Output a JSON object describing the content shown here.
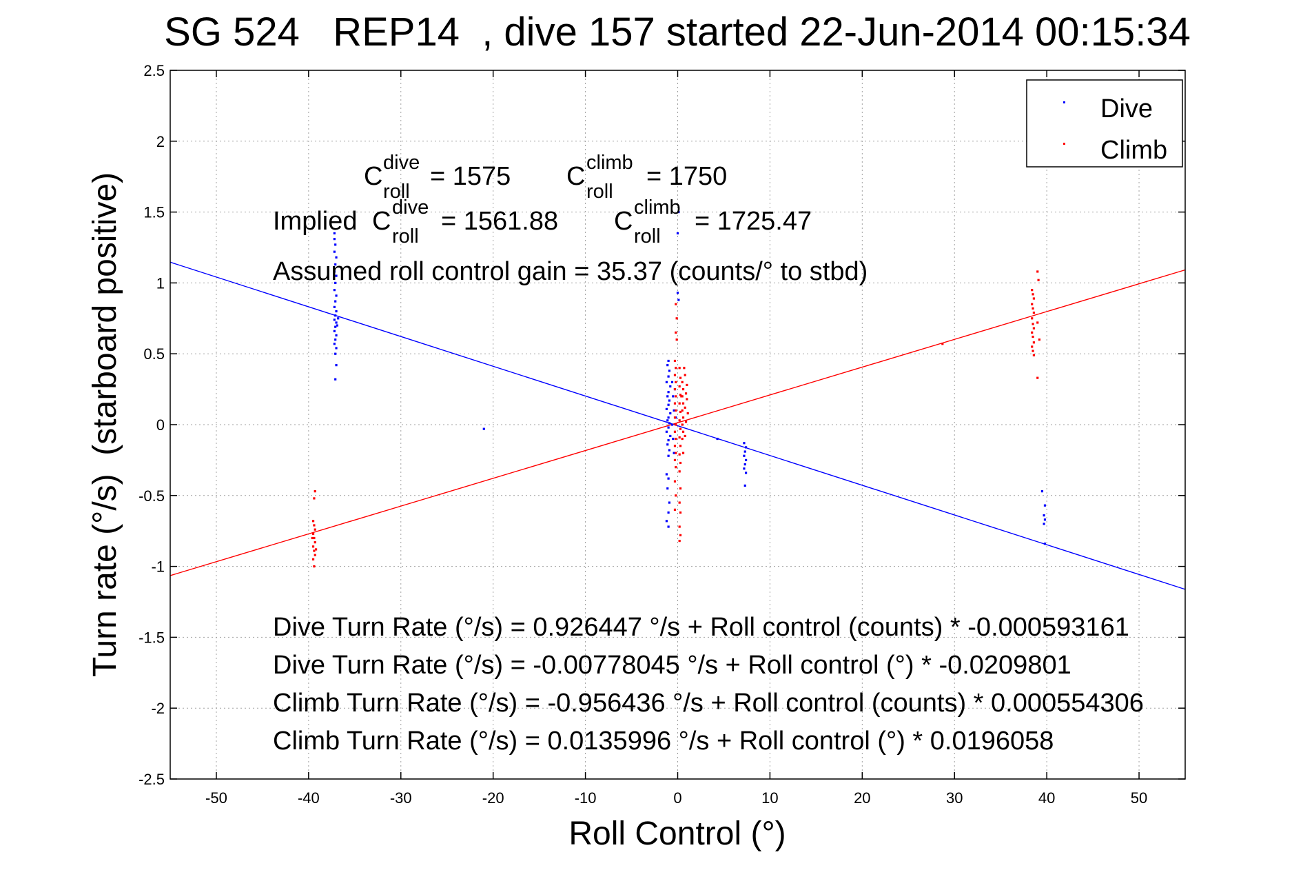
{
  "chart_data": {
    "type": "scatter",
    "title": "SG 524   REP14  , dive 157 started 22-Jun-2014 00:15:34",
    "xlabel": "Roll Control (°)",
    "ylabel": "Turn rate (°/s)  (starboard positive)",
    "xlim": [
      -55,
      55
    ],
    "ylim": [
      -2.5,
      2.5
    ],
    "xticks": [
      -50,
      -40,
      -30,
      -20,
      -10,
      0,
      10,
      20,
      30,
      40,
      50
    ],
    "yticks": [
      -2.5,
      -2,
      -1.5,
      -1,
      -0.5,
      0,
      0.5,
      1,
      1.5,
      2,
      2.5
    ],
    "xtick_labels": [
      "-50",
      "-40",
      "-30",
      "-20",
      "-10",
      "0",
      "10",
      "20",
      "30",
      "40",
      "50"
    ],
    "ytick_labels": [
      "-2.5",
      "-2",
      "-1.5",
      "-1",
      "-0.5",
      "0",
      "0.5",
      "1",
      "1.5",
      "2",
      "2.5"
    ],
    "grid": true,
    "legend": {
      "position": "top-right",
      "entries": [
        "Dive",
        "Climb"
      ]
    },
    "colors": {
      "dive": "#0000ff",
      "climb": "#ff0000"
    },
    "series": [
      {
        "name": "Dive",
        "color": "#0000ff",
        "points": [
          [
            -37.2,
            1.35
          ],
          [
            -37.2,
            1.31
          ],
          [
            -37.1,
            1.27
          ],
          [
            -37.2,
            1.22
          ],
          [
            -37.0,
            1.18
          ],
          [
            -37.1,
            1.13
          ],
          [
            -37.2,
            1.08
          ],
          [
            -37.0,
            1.05
          ],
          [
            -37.1,
            1.0
          ],
          [
            -37.2,
            0.95
          ],
          [
            -37.0,
            0.91
          ],
          [
            -37.1,
            0.87
          ],
          [
            -37.2,
            0.83
          ],
          [
            -37.0,
            0.8
          ],
          [
            -37.1,
            0.77
          ],
          [
            -37.2,
            0.74
          ],
          [
            -37.0,
            0.72
          ],
          [
            -37.1,
            0.69
          ],
          [
            -37.2,
            0.66
          ],
          [
            -37.0,
            0.63
          ],
          [
            -37.1,
            0.6
          ],
          [
            -37.2,
            0.57
          ],
          [
            -37.0,
            0.54
          ],
          [
            -37.1,
            0.5
          ],
          [
            -37.0,
            0.42
          ],
          [
            -37.1,
            0.32
          ],
          [
            -36.8,
            0.75
          ],
          [
            -36.9,
            0.7
          ],
          [
            -21.0,
            -0.03
          ],
          [
            -1.0,
            0.45
          ],
          [
            -1.1,
            0.42
          ],
          [
            -0.9,
            0.38
          ],
          [
            -1.0,
            0.34
          ],
          [
            -1.2,
            0.3
          ],
          [
            -0.8,
            0.27
          ],
          [
            -1.0,
            0.23
          ],
          [
            -1.1,
            0.2
          ],
          [
            -0.9,
            0.17
          ],
          [
            -1.0,
            0.14
          ],
          [
            -1.2,
            0.11
          ],
          [
            -0.8,
            0.08
          ],
          [
            -1.0,
            0.05
          ],
          [
            -1.1,
            0.03
          ],
          [
            -0.9,
            0.01
          ],
          [
            -1.0,
            -0.02
          ],
          [
            -1.2,
            -0.05
          ],
          [
            -0.8,
            -0.08
          ],
          [
            -1.0,
            -0.11
          ],
          [
            -1.1,
            -0.14
          ],
          [
            -0.9,
            -0.18
          ],
          [
            -1.0,
            -0.22
          ],
          [
            -1.2,
            -0.35
          ],
          [
            -1.0,
            -0.38
          ],
          [
            -1.1,
            -0.45
          ],
          [
            -0.9,
            -0.55
          ],
          [
            -1.0,
            -0.62
          ],
          [
            -1.2,
            -0.68
          ],
          [
            -1.0,
            -0.72
          ],
          [
            -0.6,
            0.3
          ],
          [
            -0.5,
            0.2
          ],
          [
            -0.4,
            0.1
          ],
          [
            -0.6,
            0.0
          ],
          [
            -0.5,
            -0.1
          ],
          [
            -0.3,
            0.25
          ],
          [
            -0.2,
            0.05
          ],
          [
            -0.4,
            -0.2
          ],
          [
            0.0,
            0.93
          ],
          [
            0.1,
            0.88
          ],
          [
            0.0,
            1.35
          ],
          [
            0.1,
            1.5
          ],
          [
            4.3,
            -0.1
          ],
          [
            7.2,
            -0.13
          ],
          [
            7.4,
            -0.16
          ],
          [
            7.3,
            -0.19
          ],
          [
            7.2,
            -0.22
          ],
          [
            7.4,
            -0.25
          ],
          [
            7.3,
            -0.28
          ],
          [
            7.2,
            -0.31
          ],
          [
            7.4,
            -0.34
          ],
          [
            7.3,
            -0.43
          ],
          [
            39.5,
            -0.47
          ],
          [
            39.8,
            -0.57
          ],
          [
            39.7,
            -0.64
          ],
          [
            39.8,
            -0.67
          ],
          [
            39.7,
            -0.7
          ],
          [
            39.8,
            -0.84
          ]
        ]
      },
      {
        "name": "Climb",
        "color": "#ff0000",
        "points": [
          [
            -39.3,
            -0.47
          ],
          [
            -39.4,
            -0.52
          ],
          [
            -39.5,
            -0.68
          ],
          [
            -39.4,
            -0.71
          ],
          [
            -39.3,
            -0.74
          ],
          [
            -39.5,
            -0.77
          ],
          [
            -39.4,
            -0.8
          ],
          [
            -39.3,
            -0.83
          ],
          [
            -39.5,
            -0.86
          ],
          [
            -39.4,
            -0.89
          ],
          [
            -39.3,
            -0.92
          ],
          [
            -39.5,
            -0.95
          ],
          [
            -39.4,
            -1.0
          ],
          [
            -39.6,
            -0.8
          ],
          [
            -39.2,
            -0.88
          ],
          [
            -0.3,
            0.45
          ],
          [
            -0.2,
            0.4
          ],
          [
            -0.3,
            0.35
          ],
          [
            -0.2,
            0.3
          ],
          [
            -0.3,
            0.25
          ],
          [
            -0.2,
            0.2
          ],
          [
            -0.3,
            0.15
          ],
          [
            -0.2,
            0.1
          ],
          [
            -0.3,
            0.05
          ],
          [
            -0.2,
            0.0
          ],
          [
            -0.3,
            -0.05
          ],
          [
            -0.2,
            -0.1
          ],
          [
            -0.3,
            -0.15
          ],
          [
            -0.2,
            -0.2
          ],
          [
            -0.3,
            -0.25
          ],
          [
            -0.2,
            -0.3
          ],
          [
            -0.3,
            -0.4
          ],
          [
            -0.2,
            -0.5
          ],
          [
            -0.3,
            -0.6
          ],
          [
            -0.2,
            0.65
          ],
          [
            -0.1,
            0.75
          ],
          [
            -0.2,
            0.85
          ],
          [
            -0.1,
            0.6
          ],
          [
            0.2,
            0.4
          ],
          [
            0.3,
            0.33
          ],
          [
            0.2,
            0.27
          ],
          [
            0.3,
            0.21
          ],
          [
            0.2,
            0.15
          ],
          [
            0.3,
            0.09
          ],
          [
            0.2,
            0.03
          ],
          [
            0.3,
            -0.03
          ],
          [
            0.2,
            -0.09
          ],
          [
            0.3,
            -0.15
          ],
          [
            0.2,
            -0.21
          ],
          [
            0.3,
            -0.27
          ],
          [
            0.2,
            -0.33
          ],
          [
            0.3,
            -0.45
          ],
          [
            0.2,
            -0.55
          ],
          [
            0.3,
            -0.62
          ],
          [
            0.2,
            -0.72
          ],
          [
            0.3,
            -0.78
          ],
          [
            0.2,
            -0.82
          ],
          [
            0.5,
            0.3
          ],
          [
            0.6,
            0.25
          ],
          [
            0.5,
            0.2
          ],
          [
            0.6,
            0.15
          ],
          [
            0.5,
            0.1
          ],
          [
            0.6,
            0.05
          ],
          [
            0.5,
            0.0
          ],
          [
            0.6,
            -0.05
          ],
          [
            0.5,
            -0.1
          ],
          [
            0.6,
            -0.2
          ],
          [
            0.8,
            0.35
          ],
          [
            0.9,
            0.22
          ],
          [
            0.8,
            0.12
          ],
          [
            0.9,
            0.02
          ],
          [
            0.8,
            -0.08
          ],
          [
            1.0,
            0.28
          ],
          [
            1.0,
            0.18
          ],
          [
            1.1,
            0.08
          ],
          [
            0.7,
            0.4
          ],
          [
            0.4,
            0.2
          ],
          [
            28.7,
            0.57
          ],
          [
            38.4,
            0.95
          ],
          [
            38.5,
            0.92
          ],
          [
            38.6,
            0.89
          ],
          [
            38.4,
            0.85
          ],
          [
            38.5,
            0.82
          ],
          [
            38.6,
            0.79
          ],
          [
            38.4,
            0.75
          ],
          [
            38.5,
            0.71
          ],
          [
            38.6,
            0.68
          ],
          [
            38.4,
            0.65
          ],
          [
            38.5,
            0.62
          ],
          [
            38.6,
            0.58
          ],
          [
            38.4,
            0.55
          ],
          [
            38.5,
            0.52
          ],
          [
            38.6,
            0.49
          ],
          [
            39.0,
            1.08
          ],
          [
            39.1,
            1.02
          ],
          [
            39.0,
            0.72
          ],
          [
            39.2,
            0.6
          ],
          [
            39.0,
            0.33
          ]
        ]
      },
      {
        "name": "Dive",
        "type": "line",
        "color": "#0000ff",
        "x": [
          -55,
          55
        ],
        "y": [
          1.1463,
          -1.1619
        ]
      },
      {
        "name": "Climb",
        "type": "line",
        "color": "#ff0000",
        "x": [
          -55,
          55
        ],
        "y": [
          -1.0647,
          1.0919
        ]
      }
    ],
    "annotations": {
      "c_dive": {
        "base": "C",
        "sup": "dive",
        "sub": "roll",
        "value": "= 1575"
      },
      "c_climb": {
        "base": "C",
        "sup": "climb",
        "sub": "roll",
        "value": "= 1750"
      },
      "implied_prefix": "Implied",
      "implied_dive": {
        "base": "C",
        "sup": "dive",
        "sub": "roll",
        "value": "= 1561.88"
      },
      "implied_climb": {
        "base": "C",
        "sup": "climb",
        "sub": "roll",
        "value": "= 1725.47"
      },
      "gain": "Assumed roll control gain = 35.37 (counts/° to stbd)",
      "eq1": "Dive Turn Rate (°/s) = 0.926447 °/s + Roll control (counts) * -0.000593161",
      "eq2": "Dive Turn Rate (°/s) = -0.00778045 °/s + Roll control (°) * -0.0209801",
      "eq3": "Climb Turn Rate (°/s) = -0.956436 °/s + Roll control (counts) * 0.000554306",
      "eq4": "Climb Turn Rate (°/s) = 0.0135996 °/s + Roll control (°) * 0.0196058"
    }
  }
}
